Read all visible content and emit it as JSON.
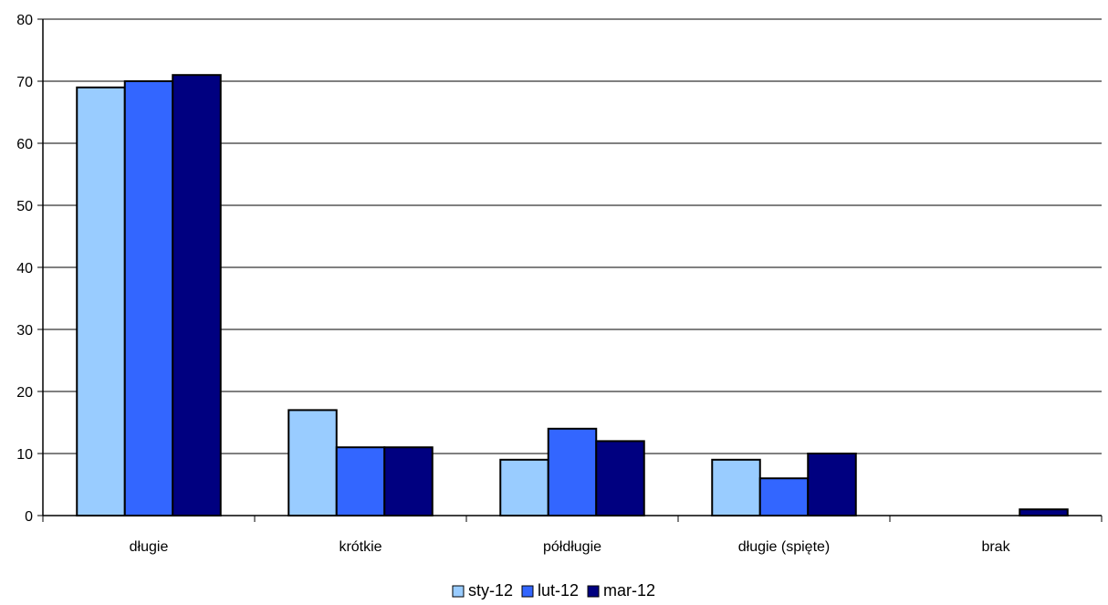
{
  "chart_data": {
    "type": "bar",
    "categories": [
      "długie",
      "krótkie",
      "półdługie",
      "długie (spięte)",
      "brak"
    ],
    "series": [
      {
        "name": "sty-12",
        "color": "#99ccff",
        "values": [
          69,
          17,
          9,
          9,
          0
        ]
      },
      {
        "name": "lut-12",
        "color": "#3366ff",
        "values": [
          70,
          11,
          14,
          6,
          0
        ]
      },
      {
        "name": "mar-12",
        "color": "#000080",
        "values": [
          71,
          11,
          12,
          10,
          1
        ]
      }
    ],
    "ylim": [
      0,
      80
    ],
    "yticks": [
      0,
      10,
      20,
      30,
      40,
      50,
      60,
      70,
      80
    ],
    "grid": true,
    "legend_position": "bottom-center"
  }
}
